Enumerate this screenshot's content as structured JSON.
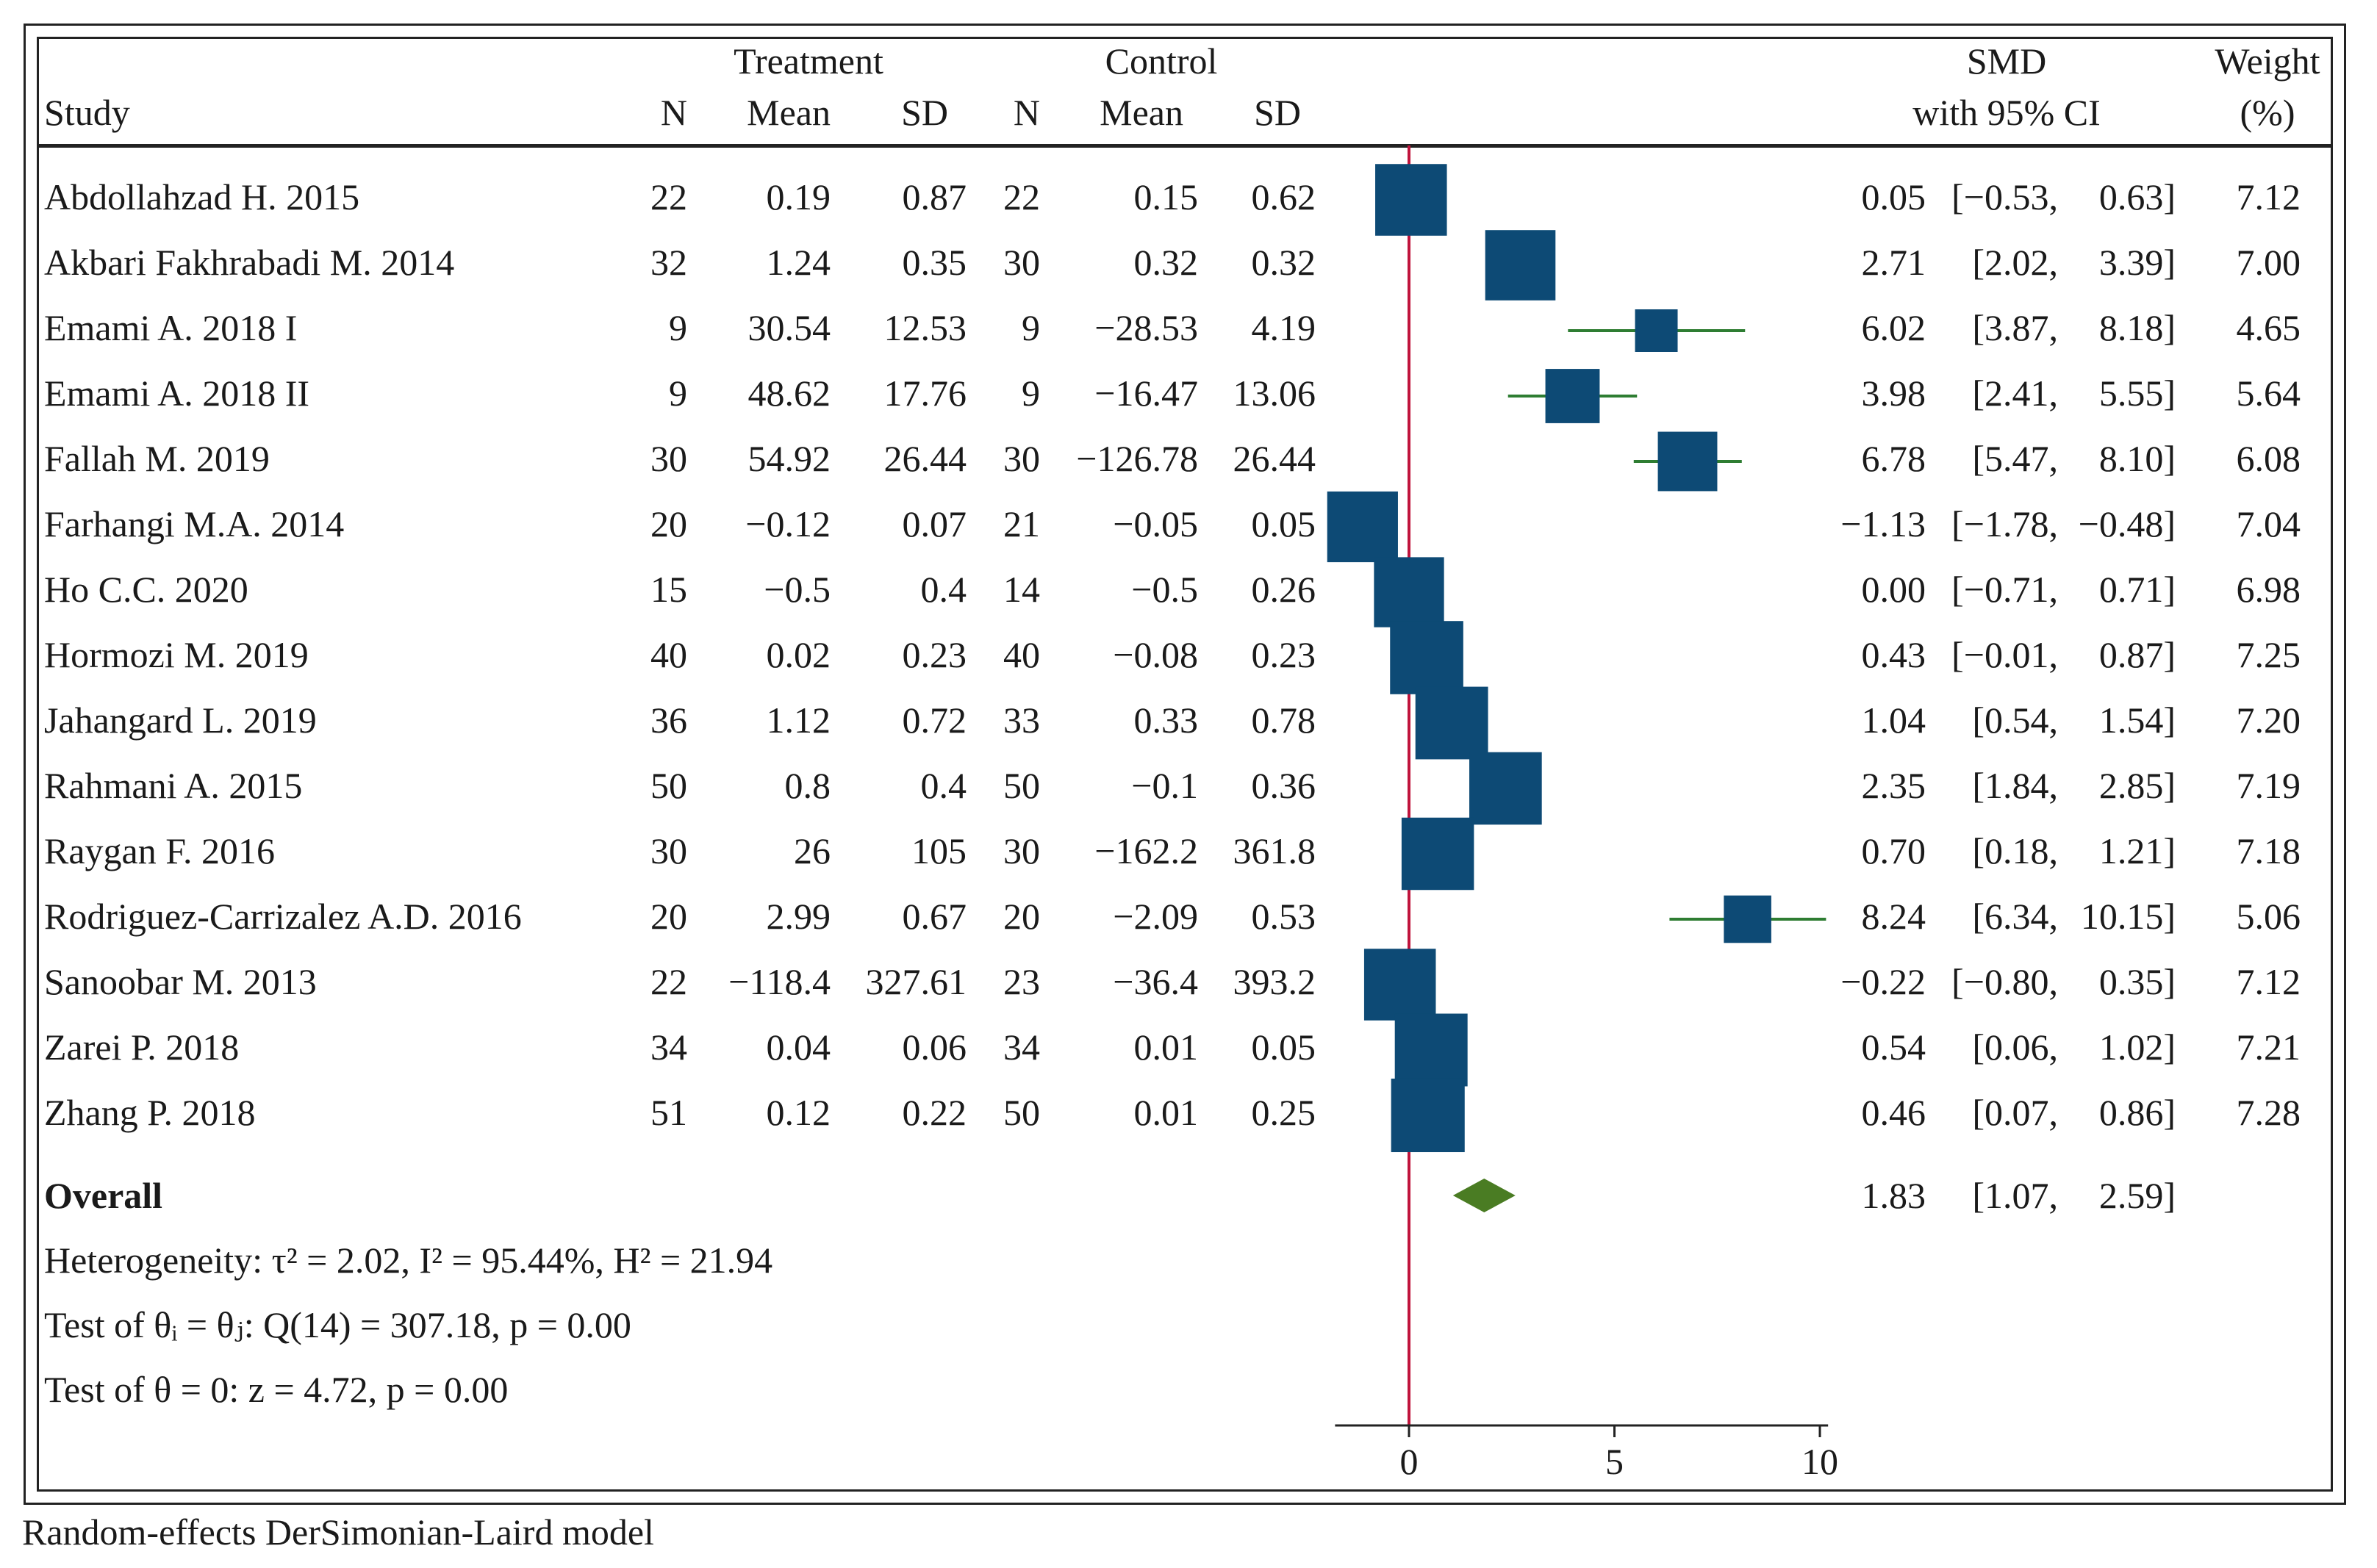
{
  "header": {
    "treatment": "Treatment",
    "control": "Control",
    "study": "Study",
    "n": "N",
    "mean": "Mean",
    "sd": "SD",
    "smd": "SMD",
    "smd_sub": "with 95% CI",
    "weight": "Weight",
    "weight_sub": "(%)"
  },
  "studies": [
    {
      "name": "Abdollahzad H. 2015",
      "tn": "22",
      "tmean": "0.19",
      "tsd": "0.87",
      "cn": "22",
      "cmean": "0.15",
      "csd": "0.62",
      "smd": "0.05",
      "lo": "[−0.53,",
      "hi": "0.63]",
      "weight": "7.12"
    },
    {
      "name": "Akbari Fakhrabadi M. 2014",
      "tn": "32",
      "tmean": "1.24",
      "tsd": "0.35",
      "cn": "30",
      "cmean": "0.32",
      "csd": "0.32",
      "smd": "2.71",
      "lo": "[2.02,",
      "hi": "3.39]",
      "weight": "7.00"
    },
    {
      "name": "Emami A. 2018  I",
      "tn": "9",
      "tmean": "30.54",
      "tsd": "12.53",
      "cn": "9",
      "cmean": "−28.53",
      "csd": "4.19",
      "smd": "6.02",
      "lo": "[3.87,",
      "hi": "8.18]",
      "weight": "4.65"
    },
    {
      "name": "Emami A. 2018  II",
      "tn": "9",
      "tmean": "48.62",
      "tsd": "17.76",
      "cn": "9",
      "cmean": "−16.47",
      "csd": "13.06",
      "smd": "3.98",
      "lo": "[2.41,",
      "hi": "5.55]",
      "weight": "5.64"
    },
    {
      "name": "Fallah M. 2019",
      "tn": "30",
      "tmean": "54.92",
      "tsd": "26.44",
      "cn": "30",
      "cmean": "−126.78",
      "csd": "26.44",
      "smd": "6.78",
      "lo": "[5.47,",
      "hi": "8.10]",
      "weight": "6.08"
    },
    {
      "name": "Farhangi M.A. 2014",
      "tn": "20",
      "tmean": "−0.12",
      "tsd": "0.07",
      "cn": "21",
      "cmean": "−0.05",
      "csd": "0.05",
      "smd": "−1.13",
      "lo": "[−1.78,",
      "hi": "−0.48]",
      "weight": "7.04"
    },
    {
      "name": "Ho C.C. 2020",
      "tn": "15",
      "tmean": "−0.5",
      "tsd": "0.4",
      "cn": "14",
      "cmean": "−0.5",
      "csd": "0.26",
      "smd": "0.00",
      "lo": "[−0.71,",
      "hi": "0.71]",
      "weight": "6.98"
    },
    {
      "name": "Hormozi M. 2019",
      "tn": "40",
      "tmean": "0.02",
      "tsd": "0.23",
      "cn": "40",
      "cmean": "−0.08",
      "csd": "0.23",
      "smd": "0.43",
      "lo": "[−0.01,",
      "hi": "0.87]",
      "weight": "7.25"
    },
    {
      "name": "Jahangard L. 2019",
      "tn": "36",
      "tmean": "1.12",
      "tsd": "0.72",
      "cn": "33",
      "cmean": "0.33",
      "csd": "0.78",
      "smd": "1.04",
      "lo": "[0.54,",
      "hi": "1.54]",
      "weight": "7.20"
    },
    {
      "name": "Rahmani A. 2015",
      "tn": "50",
      "tmean": "0.8",
      "tsd": "0.4",
      "cn": "50",
      "cmean": "−0.1",
      "csd": "0.36",
      "smd": "2.35",
      "lo": "[1.84,",
      "hi": "2.85]",
      "weight": "7.19"
    },
    {
      "name": "Raygan F. 2016",
      "tn": "30",
      "tmean": "26",
      "tsd": "105",
      "cn": "30",
      "cmean": "−162.2",
      "csd": "361.8",
      "smd": "0.70",
      "lo": "[0.18,",
      "hi": "1.21]",
      "weight": "7.18"
    },
    {
      "name": "Rodriguez-Carrizalez A.D. 2016",
      "tn": "20",
      "tmean": "2.99",
      "tsd": "0.67",
      "cn": "20",
      "cmean": "−2.09",
      "csd": "0.53",
      "smd": "8.24",
      "lo": "[6.34,",
      "hi": "10.15]",
      "weight": "5.06"
    },
    {
      "name": "Sanoobar M. 2013",
      "tn": "22",
      "tmean": "−118.4",
      "tsd": "327.61",
      "cn": "23",
      "cmean": "−36.4",
      "csd": "393.2",
      "smd": "−0.22",
      "lo": "[−0.80,",
      "hi": "0.35]",
      "weight": "7.12"
    },
    {
      "name": "Zarei P. 2018",
      "tn": "34",
      "tmean": "0.04",
      "tsd": "0.06",
      "cn": "34",
      "cmean": "0.01",
      "csd": "0.05",
      "smd": "0.54",
      "lo": "[0.06,",
      "hi": "1.02]",
      "weight": "7.21"
    },
    {
      "name": "Zhang P. 2018",
      "tn": "51",
      "tmean": "0.12",
      "tsd": "0.22",
      "cn": "50",
      "cmean": "0.01",
      "csd": "0.25",
      "smd": "0.46",
      "lo": "[0.07,",
      "hi": "0.86]",
      "weight": "7.28"
    }
  ],
  "overall": {
    "label": "Overall",
    "smd": "1.83",
    "lo": "[1.07,",
    "hi": "2.59]"
  },
  "stats": {
    "heterogeneity": "Heterogeneity: τ² = 2.02, I² = 95.44%, H² = 21.94",
    "q_test": "Test of θᵢ = θⱼ: Q(14) = 307.18, p = 0.00",
    "z_test": "Test of θ = 0: z = 4.72, p = 0.00"
  },
  "footnote": "Random-effects DerSimonian-Laird model",
  "colors": {
    "marker": "#0d4a75",
    "ci_line": "#2e7d32",
    "diamond": "#4a7c23",
    "null_line": "#c0143c",
    "text": "#1a1a1a"
  },
  "chart_data": {
    "type": "forest",
    "xlabel": "",
    "xlim": [
      -1.8,
      10.2
    ],
    "xticks": [
      0,
      5,
      10
    ],
    "null_value": 0,
    "series": [
      {
        "name": "Abdollahzad H. 2015",
        "smd": 0.05,
        "lo": -0.53,
        "hi": 0.63,
        "weight": 7.12
      },
      {
        "name": "Akbari Fakhrabadi M. 2014",
        "smd": 2.71,
        "lo": 2.02,
        "hi": 3.39,
        "weight": 7.0
      },
      {
        "name": "Emami A. 2018 I",
        "smd": 6.02,
        "lo": 3.87,
        "hi": 8.18,
        "weight": 4.65
      },
      {
        "name": "Emami A. 2018 II",
        "smd": 3.98,
        "lo": 2.41,
        "hi": 5.55,
        "weight": 5.64
      },
      {
        "name": "Fallah M. 2019",
        "smd": 6.78,
        "lo": 5.47,
        "hi": 8.1,
        "weight": 6.08
      },
      {
        "name": "Farhangi M.A. 2014",
        "smd": -1.13,
        "lo": -1.78,
        "hi": -0.48,
        "weight": 7.04
      },
      {
        "name": "Ho C.C. 2020",
        "smd": 0.0,
        "lo": -0.71,
        "hi": 0.71,
        "weight": 6.98
      },
      {
        "name": "Hormozi M. 2019",
        "smd": 0.43,
        "lo": -0.01,
        "hi": 0.87,
        "weight": 7.25
      },
      {
        "name": "Jahangard L. 2019",
        "smd": 1.04,
        "lo": 0.54,
        "hi": 1.54,
        "weight": 7.2
      },
      {
        "name": "Rahmani A. 2015",
        "smd": 2.35,
        "lo": 1.84,
        "hi": 2.85,
        "weight": 7.19
      },
      {
        "name": "Raygan F. 2016",
        "smd": 0.7,
        "lo": 0.18,
        "hi": 1.21,
        "weight": 7.18
      },
      {
        "name": "Rodriguez-Carrizalez A.D. 2016",
        "smd": 8.24,
        "lo": 6.34,
        "hi": 10.15,
        "weight": 5.06
      },
      {
        "name": "Sanoobar M. 2013",
        "smd": -0.22,
        "lo": -0.8,
        "hi": 0.35,
        "weight": 7.12
      },
      {
        "name": "Zarei P. 2018",
        "smd": 0.54,
        "lo": 0.06,
        "hi": 1.02,
        "weight": 7.21
      },
      {
        "name": "Zhang P. 2018",
        "smd": 0.46,
        "lo": 0.07,
        "hi": 0.86,
        "weight": 7.28
      }
    ],
    "overall": {
      "smd": 1.83,
      "lo": 1.07,
      "hi": 2.59
    }
  }
}
